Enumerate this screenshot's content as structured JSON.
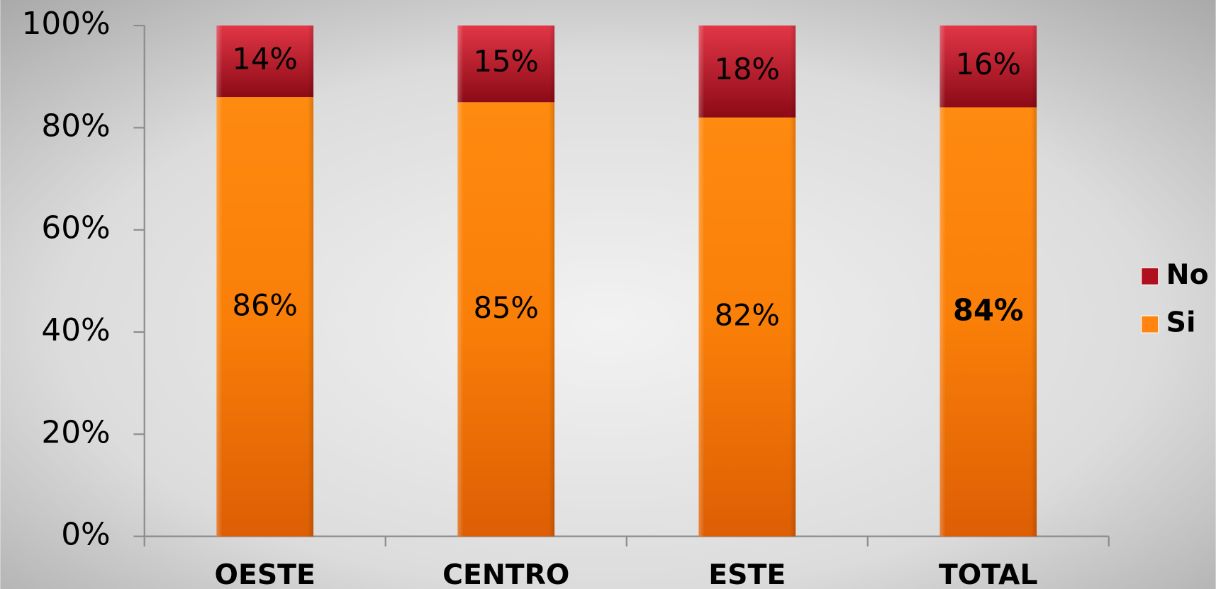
{
  "chart_data": {
    "type": "stacked_bar",
    "categories": [
      "OESTE",
      "CENTRO",
      "ESTE",
      "TOTAL"
    ],
    "series": [
      {
        "name": "Si",
        "color": "#ff8410",
        "values": [
          86,
          85,
          82,
          84
        ],
        "value_labels": [
          "86%",
          "85%",
          "82%",
          "84%"
        ]
      },
      {
        "name": "No",
        "color": "#b0101e",
        "values": [
          14,
          15,
          18,
          16
        ],
        "value_labels": [
          "14%",
          "15%",
          "18%",
          "16%"
        ]
      }
    ],
    "ylim": [
      0,
      100
    ],
    "yticks": [
      {
        "value": 0,
        "label": "0%"
      },
      {
        "value": 20,
        "label": "20%"
      },
      {
        "value": 40,
        "label": "40%"
      },
      {
        "value": 60,
        "label": "60%"
      },
      {
        "value": 80,
        "label": "80%"
      },
      {
        "value": 100,
        "label": "100%"
      }
    ],
    "legend": "right"
  }
}
